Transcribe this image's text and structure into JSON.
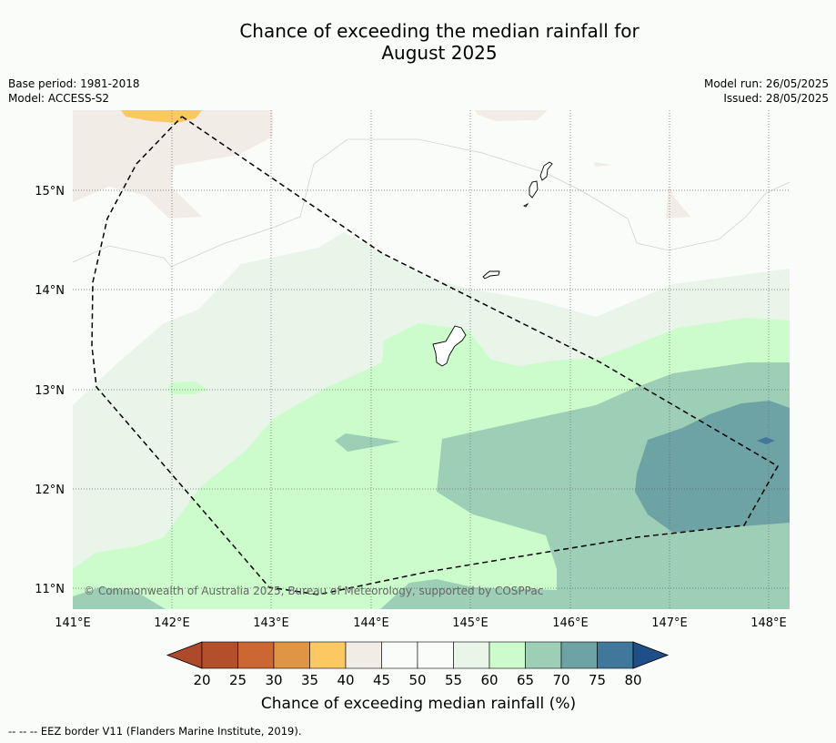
{
  "title": {
    "line1": "Chance of exceeding the median rainfall for",
    "line2": "August 2025"
  },
  "meta": {
    "base_period": "Base period: 1981-2018",
    "model": "Model: ACCESS-S2",
    "model_run": "Model run: 26/05/2025",
    "issued": "Issued: 28/05/2025"
  },
  "map": {
    "lat_labels": [
      "15°N",
      "14°N",
      "13°N",
      "12°N",
      "11°N"
    ],
    "lon_labels": [
      "141°E",
      "142°E",
      "143°E",
      "144°E",
      "145°E",
      "146°E",
      "147°E",
      "148°E"
    ],
    "copyright": "© Commonwealth of Australia 2025, Bureau of Meteorology, supported by COSPPac"
  },
  "legend": {
    "title": "Chance of exceeding median rainfall (%)",
    "ticks": [
      "20",
      "25",
      "30",
      "35",
      "40",
      "45",
      "50",
      "55",
      "60",
      "65",
      "70",
      "75",
      "80"
    ],
    "colors": [
      "#ad4a2b",
      "#b44f2b",
      "#cc6633",
      "#e09545",
      "#fcc862",
      "#f1ece6",
      "#fafcfa",
      "#fafcfa",
      "#e9f5e9",
      "#ccfccc",
      "#9ccfb6",
      "#6ea3a5",
      "#3f789a",
      "#1e4f88"
    ]
  },
  "footer": "--  --  -- EEZ border V11 (Flanders Marine Institute, 2019)."
}
